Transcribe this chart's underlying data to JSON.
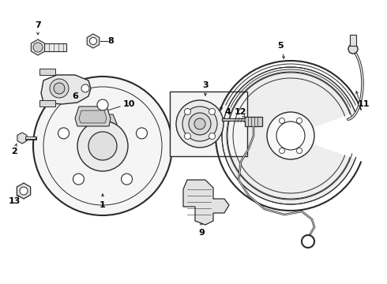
{
  "bg_color": "#ffffff",
  "line_color": "#2a2a2a",
  "label_color": "#000000",
  "label_fontsize": 8,
  "figsize": [
    4.9,
    3.6
  ],
  "dpi": 100,
  "xlim": [
    0,
    490
  ],
  "ylim": [
    0,
    360
  ]
}
